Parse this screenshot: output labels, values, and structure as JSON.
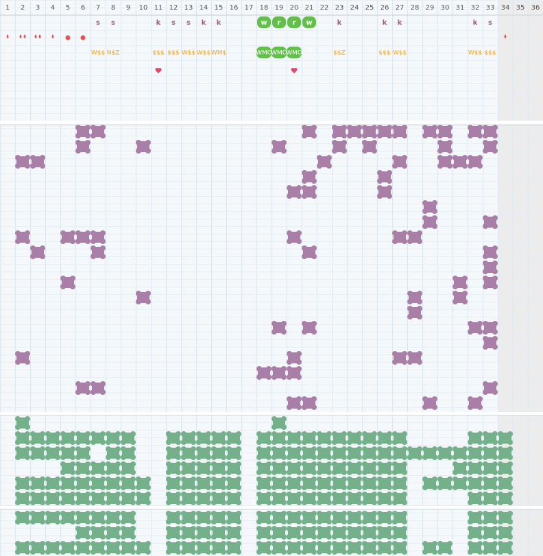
{
  "columns": [
    "1",
    "2",
    "3",
    "4",
    "5",
    "6",
    "7",
    "8",
    "9",
    "10",
    "11",
    "12",
    "13",
    "14",
    "15",
    "16",
    "17",
    "18",
    "19",
    "20",
    "21",
    "22",
    "23",
    "24",
    "25",
    "26",
    "27",
    "28",
    "29",
    "30",
    "31",
    "32",
    "33",
    "34",
    "35",
    "36"
  ],
  "letter_row": [
    null,
    null,
    null,
    null,
    null,
    null,
    "s",
    "s",
    null,
    null,
    "k",
    "s",
    "s",
    "k",
    "k",
    null,
    null,
    "w",
    "r",
    "r",
    "w",
    null,
    "k",
    null,
    null,
    "k",
    "k",
    null,
    null,
    null,
    null,
    "k",
    "s",
    null,
    null,
    null
  ],
  "code_row": [
    null,
    null,
    null,
    null,
    null,
    null,
    "W$$",
    "N$Z",
    null,
    null,
    "$$$",
    "$$$",
    "W$$",
    "W$$",
    "WM$",
    null,
    null,
    "WMO",
    "WMO",
    "WMO",
    null,
    null,
    "$$Z",
    null,
    null,
    "$$$",
    "W$$",
    null,
    null,
    null,
    null,
    "W$$",
    "$$$",
    null,
    null,
    null
  ]
}
